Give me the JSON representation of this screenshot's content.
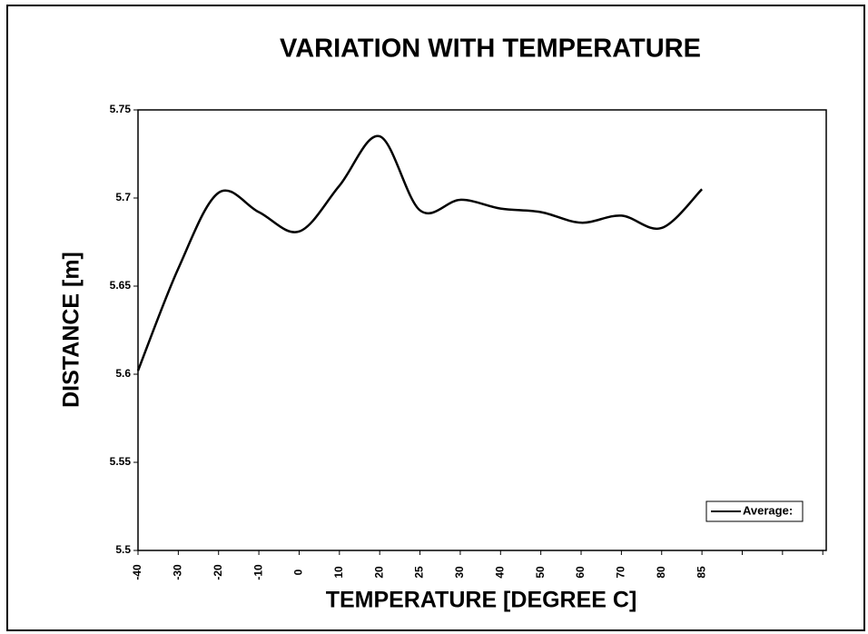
{
  "chart_data": {
    "type": "line",
    "title": "VARIATION WITH TEMPERATURE",
    "x_label": "TEMPERATURE [DEGREE C]",
    "y_label": "DISTANCE [m]",
    "categories": [
      "-40",
      "-30",
      "-20",
      "-10",
      "0",
      "10",
      "20",
      "25",
      "30",
      "40",
      "50",
      "60",
      "70",
      "80",
      "85",
      null,
      null,
      null
    ],
    "series": [
      {
        "name": "Average:",
        "color": "#000000",
        "values": [
          5.602,
          5.66,
          5.703,
          5.692,
          5.681,
          5.707,
          5.735,
          5.693,
          5.699,
          5.694,
          5.692,
          5.686,
          5.69,
          5.683,
          5.705,
          null,
          null,
          null
        ]
      }
    ],
    "ylim": [
      5.5,
      5.75
    ],
    "yticks": [
      5.5,
      5.55,
      5.6,
      5.65,
      5.7,
      5.75
    ],
    "grid": false,
    "legend": "lower right"
  }
}
